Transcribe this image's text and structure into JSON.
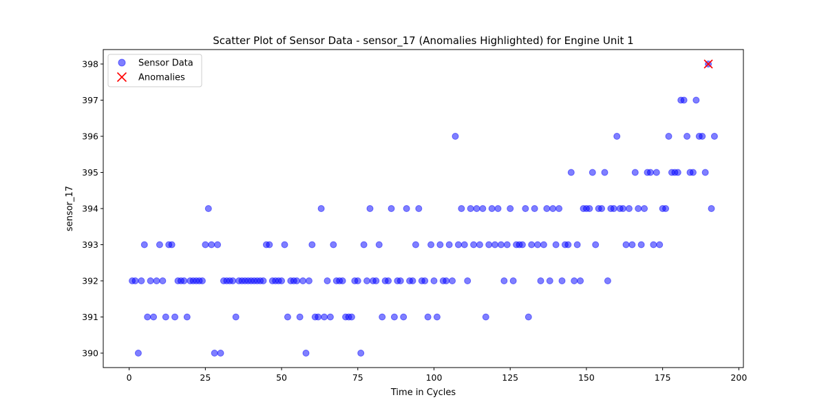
{
  "chart_data": {
    "type": "scatter",
    "title": "Scatter Plot of Sensor Data - sensor_17 (Anomalies Highlighted) for Engine Unit 1",
    "xlabel": "Time in Cycles",
    "ylabel": "sensor_17",
    "xlim": [
      -8.5,
      201.5
    ],
    "ylim": [
      389.6,
      398.4
    ],
    "xticks": [
      0,
      25,
      50,
      75,
      100,
      125,
      150,
      175,
      200
    ],
    "yticks": [
      390,
      391,
      392,
      393,
      394,
      395,
      396,
      397,
      398
    ],
    "grid": false,
    "legend_position": "top-left",
    "series": [
      {
        "name": "Sensor Data",
        "marker": "circle",
        "color": "#0000ff",
        "x": [
          1,
          2,
          3,
          4,
          5,
          6,
          7,
          8,
          9,
          10,
          11,
          12,
          13,
          14,
          15,
          16,
          17,
          18,
          19,
          20,
          21,
          22,
          23,
          24,
          25,
          26,
          27,
          28,
          29,
          30,
          31,
          32,
          33,
          34,
          35,
          36,
          37,
          38,
          39,
          40,
          41,
          42,
          43,
          44,
          45,
          46,
          47,
          48,
          49,
          50,
          51,
          52,
          53,
          54,
          55,
          56,
          57,
          58,
          59,
          60,
          61,
          62,
          63,
          64,
          65,
          66,
          67,
          68,
          69,
          70,
          71,
          72,
          73,
          74,
          75,
          76,
          77,
          78,
          79,
          80,
          81,
          82,
          83,
          84,
          85,
          86,
          87,
          88,
          89,
          90,
          91,
          92,
          93,
          94,
          95,
          96,
          97,
          98,
          99,
          100,
          101,
          102,
          103,
          104,
          105,
          106,
          107,
          108,
          109,
          110,
          111,
          112,
          113,
          114,
          115,
          116,
          117,
          118,
          119,
          120,
          121,
          122,
          123,
          124,
          125,
          126,
          127,
          128,
          129,
          130,
          131,
          132,
          133,
          134,
          135,
          136,
          137,
          138,
          139,
          140,
          141,
          142,
          143,
          144,
          145,
          146,
          147,
          148,
          149,
          150,
          151,
          152,
          153,
          154,
          155,
          156,
          157,
          158,
          159,
          160,
          161,
          162,
          163,
          164,
          165,
          166,
          167,
          168,
          169,
          170,
          171,
          172,
          173,
          174,
          175,
          176,
          177,
          178,
          179,
          180,
          181,
          182,
          183,
          184,
          185,
          186,
          187,
          188,
          189,
          190,
          191,
          192
        ],
        "y": [
          392,
          392,
          390,
          392,
          393,
          391,
          392,
          391,
          392,
          393,
          392,
          391,
          393,
          393,
          391,
          392,
          392,
          392,
          391,
          392,
          392,
          392,
          392,
          392,
          393,
          394,
          393,
          390,
          393,
          390,
          392,
          392,
          392,
          392,
          391,
          392,
          392,
          392,
          392,
          392,
          392,
          392,
          392,
          392,
          393,
          393,
          392,
          392,
          392,
          392,
          393,
          391,
          392,
          392,
          392,
          391,
          392,
          390,
          392,
          393,
          391,
          391,
          394,
          391,
          392,
          391,
          393,
          392,
          392,
          392,
          391,
          391,
          391,
          392,
          392,
          390,
          393,
          392,
          394,
          392,
          392,
          393,
          391,
          392,
          392,
          394,
          391,
          392,
          392,
          391,
          394,
          392,
          392,
          393,
          394,
          392,
          392,
          391,
          393,
          392,
          391,
          393,
          392,
          392,
          393,
          392,
          396,
          393,
          394,
          393,
          392,
          394,
          393,
          394,
          393,
          394,
          391,
          393,
          394,
          393,
          394,
          393,
          392,
          393,
          394,
          392,
          393,
          393,
          393,
          394,
          391,
          393,
          394,
          393,
          392,
          393,
          394,
          392,
          394,
          393,
          394,
          392,
          393,
          393,
          395,
          392,
          393,
          392,
          394,
          394,
          394,
          395,
          393,
          394,
          394,
          395,
          392,
          394,
          394,
          396,
          394,
          394,
          393,
          394,
          393,
          395,
          394,
          393,
          394,
          395,
          395,
          393,
          395,
          393,
          394,
          394,
          396,
          395,
          395,
          395,
          397,
          397,
          396,
          395,
          395,
          397,
          396,
          396,
          395,
          398,
          394,
          396
        ]
      },
      {
        "name": "Anomalies",
        "marker": "x",
        "color": "#ff0000",
        "x": [
          190
        ],
        "y": [
          398
        ]
      }
    ]
  }
}
